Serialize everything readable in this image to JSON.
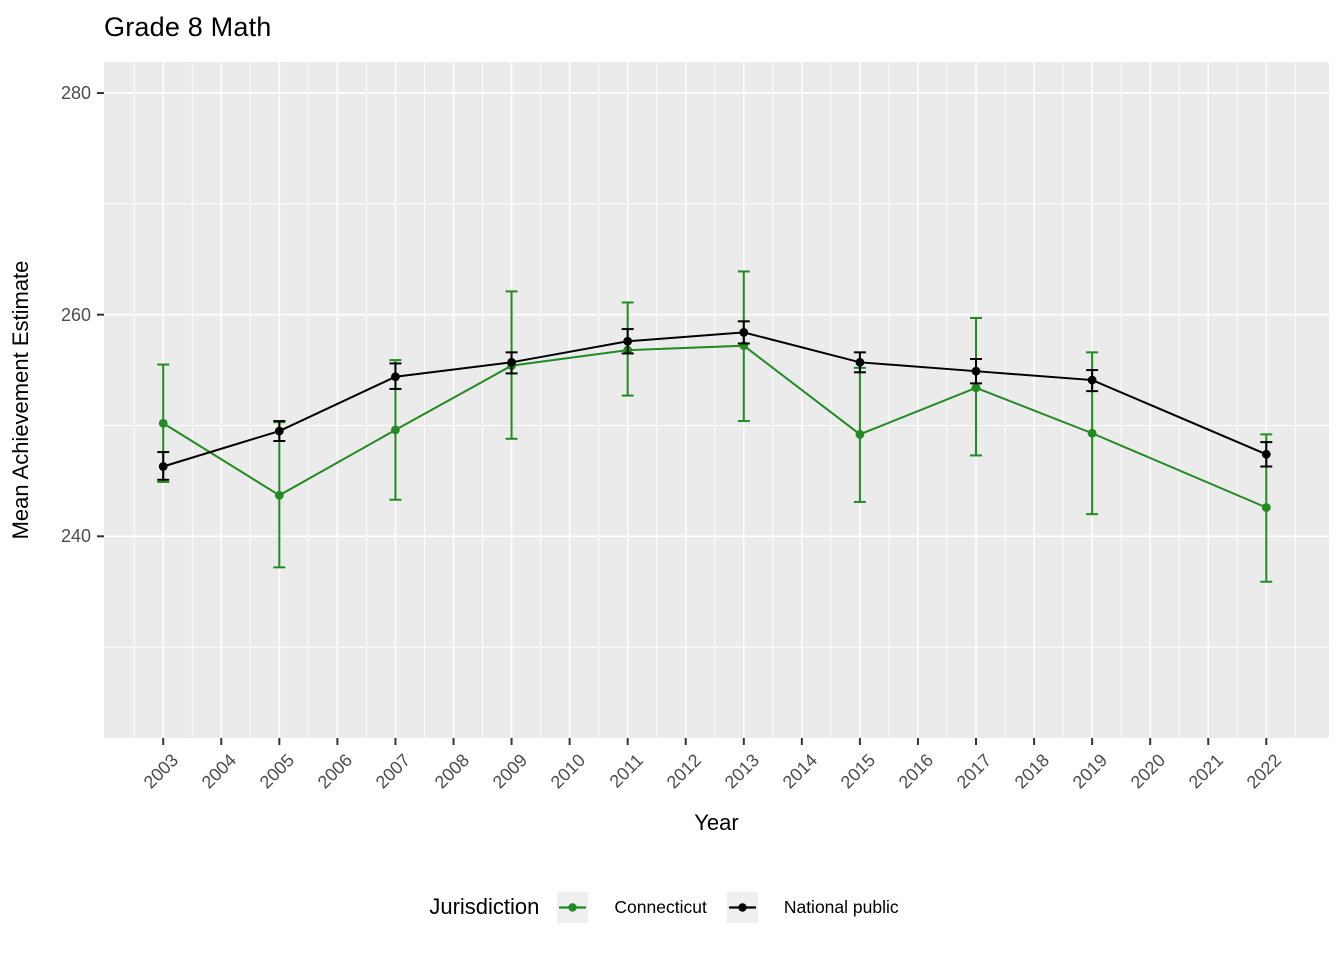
{
  "title": "Grade 8 Math",
  "axes": {
    "x_label": "Year",
    "y_label": "Mean Achievement Estimate"
  },
  "legend": {
    "title": "Jurisdiction",
    "entries": [
      {
        "label": "Connecticut",
        "color": "#228B22"
      },
      {
        "label": "National public",
        "color": "#000000"
      }
    ]
  },
  "colors": {
    "panel_bg": "#EBEBEB",
    "grid": "#FFFFFF",
    "tick_mark": "#333333",
    "tick_label": "#4D4D4D",
    "legend_key_bg": "#EFEFEF",
    "connecticut": "#228B22",
    "national": "#000000"
  },
  "chart_data": {
    "type": "line",
    "title": "Grade 8 Math",
    "xlabel": "Year",
    "ylabel": "Mean Achievement Estimate",
    "grid": true,
    "legend_position": "bottom",
    "error_bars": true,
    "x_ticks": [
      2003,
      2004,
      2005,
      2006,
      2007,
      2008,
      2009,
      2010,
      2011,
      2012,
      2013,
      2014,
      2015,
      2016,
      2017,
      2018,
      2019,
      2020,
      2021,
      2022
    ],
    "y_ticks": [
      240,
      260,
      280
    ],
    "y_minor_ticks": [
      230,
      250,
      270
    ],
    "xlim": [
      2001.98,
      2023.08
    ],
    "ylim": [
      221.8,
      282.8
    ],
    "series": [
      {
        "name": "Connecticut",
        "color": "#228B22",
        "points": [
          {
            "x": 2003,
            "y": 250.2,
            "lo": 244.9,
            "hi": 255.5
          },
          {
            "x": 2005,
            "y": 243.7,
            "lo": 237.2,
            "hi": 250.3
          },
          {
            "x": 2007,
            "y": 249.6,
            "lo": 243.3,
            "hi": 255.9
          },
          {
            "x": 2009,
            "y": 255.4,
            "lo": 248.8,
            "hi": 262.1
          },
          {
            "x": 2011,
            "y": 256.8,
            "lo": 252.7,
            "hi": 261.1
          },
          {
            "x": 2013,
            "y": 257.2,
            "lo": 250.4,
            "hi": 263.9
          },
          {
            "x": 2015,
            "y": 249.2,
            "lo": 243.1,
            "hi": 255.2
          },
          {
            "x": 2017,
            "y": 253.4,
            "lo": 247.3,
            "hi": 259.7
          },
          {
            "x": 2019,
            "y": 249.3,
            "lo": 242.0,
            "hi": 256.6
          },
          {
            "x": 2022,
            "y": 242.6,
            "lo": 235.9,
            "hi": 249.2
          }
        ]
      },
      {
        "name": "National public",
        "color": "#000000",
        "points": [
          {
            "x": 2003,
            "y": 246.3,
            "lo": 245.1,
            "hi": 247.6
          },
          {
            "x": 2005,
            "y": 249.5,
            "lo": 248.6,
            "hi": 250.4
          },
          {
            "x": 2007,
            "y": 254.4,
            "lo": 253.3,
            "hi": 255.6
          },
          {
            "x": 2009,
            "y": 255.7,
            "lo": 254.7,
            "hi": 256.6
          },
          {
            "x": 2011,
            "y": 257.6,
            "lo": 256.5,
            "hi": 258.7
          },
          {
            "x": 2013,
            "y": 258.4,
            "lo": 257.4,
            "hi": 259.4
          },
          {
            "x": 2015,
            "y": 255.7,
            "lo": 254.8,
            "hi": 256.6
          },
          {
            "x": 2017,
            "y": 254.9,
            "lo": 253.8,
            "hi": 256.0
          },
          {
            "x": 2019,
            "y": 254.1,
            "lo": 253.1,
            "hi": 255.0
          },
          {
            "x": 2022,
            "y": 247.4,
            "lo": 246.3,
            "hi": 248.5
          }
        ]
      }
    ]
  }
}
